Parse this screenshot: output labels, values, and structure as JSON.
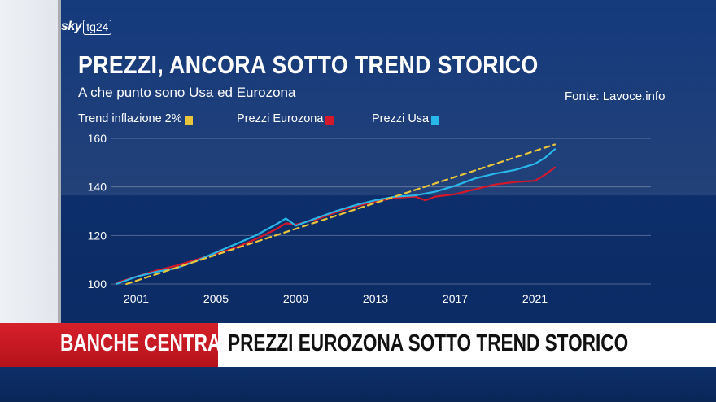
{
  "brand": {
    "logo_sky": "sky",
    "logo_tg": "tg24"
  },
  "header": {
    "title": "PREZZI, ANCORA SOTTO TREND STORICO",
    "subtitle": "A che punto sono Usa ed Eurozona",
    "source": "Fonte: Lavoce.info"
  },
  "colors": {
    "trend": "#e8c53a",
    "eurozona": "#d4182b",
    "usa": "#29b6e8",
    "accent_red": "#c8161e"
  },
  "chart_data": {
    "type": "line",
    "title": "PREZZI, ANCORA SOTTO TREND STORICO",
    "subtitle": "A che punto sono Usa ed Eurozona",
    "xlabel": "",
    "ylabel": "",
    "xlim": [
      2000,
      2022
    ],
    "ylim": [
      100,
      160
    ],
    "x_ticks": [
      2001,
      2005,
      2009,
      2013,
      2017,
      2021
    ],
    "y_ticks": [
      100,
      120,
      140,
      160
    ],
    "grid": "horizontal",
    "legend_position": "top",
    "series": [
      {
        "name": "Trend inflazione 2%",
        "style": "dashed",
        "x": [
          2000.5,
          2022
        ],
        "y": [
          100,
          157.5
        ]
      },
      {
        "name": "Prezzi Eurozona",
        "style": "solid",
        "x": [
          2000,
          2001,
          2002,
          2003,
          2004,
          2005,
          2006,
          2007,
          2008,
          2008.5,
          2009,
          2010,
          2011,
          2012,
          2013,
          2014,
          2015,
          2015.5,
          2016,
          2017,
          2018,
          2019,
          2020,
          2021,
          2021.5,
          2022
        ],
        "y": [
          100.5,
          103,
          105.5,
          107.5,
          110,
          112.5,
          115,
          118.5,
          122.5,
          125,
          124.5,
          126.5,
          129.5,
          132,
          134,
          135.5,
          136,
          134.5,
          136,
          137,
          139,
          141,
          142,
          142.5,
          145,
          148
        ]
      },
      {
        "name": "Prezzi Usa",
        "style": "solid",
        "x": [
          2000,
          2001,
          2002,
          2003,
          2004,
          2005,
          2006,
          2007,
          2008,
          2008.5,
          2009,
          2010,
          2011,
          2012,
          2013,
          2014,
          2015,
          2016,
          2017,
          2018,
          2019,
          2020,
          2021,
          2021.5,
          2022
        ],
        "y": [
          100,
          103,
          105,
          106.5,
          109.5,
          113,
          116.5,
          120,
          124.5,
          127,
          124,
          127,
          130,
          132.5,
          134.5,
          136,
          136.5,
          138,
          140.5,
          143.5,
          145.5,
          147,
          149.5,
          152,
          155.5
        ]
      }
    ]
  },
  "ticker": {
    "tag": "BANCHE CENTRALI",
    "headline": "PREZZI EUROZONA SOTTO TREND STORICO"
  }
}
